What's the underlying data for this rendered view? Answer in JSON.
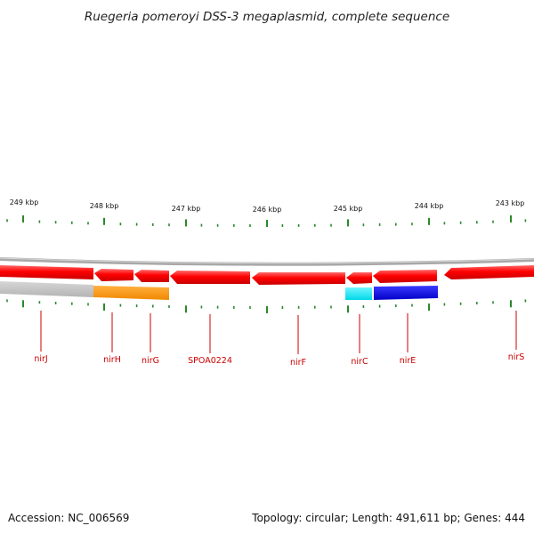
{
  "title": "Ruegeria pomeroyi DSS-3 megaplasmid, complete sequence",
  "footer": {
    "accession": "Accession: NC_006569",
    "summary": "Topology: circular; Length: 491,611 bp; Genes: 444"
  },
  "kbp_labels": [
    "249 kbp",
    "248 kbp",
    "247 kbp",
    "246 kbp",
    "245 kbp",
    "244 kbp",
    "243 kbp"
  ],
  "genes": [
    {
      "label": "nirJ"
    },
    {
      "label": "nirH"
    },
    {
      "label": "nirG"
    },
    {
      "label": "SPOA0224"
    },
    {
      "label": "nirF"
    },
    {
      "label": "nirC"
    },
    {
      "label": "nirE"
    },
    {
      "label": "nirS"
    }
  ],
  "colors": {
    "cds": "#ff0000",
    "backbone": "#909090",
    "tick": "#2a8a2a",
    "gene_label": "#cc0000",
    "feature_grey": "#c4c4c4",
    "feature_orange": "#ff9900",
    "feature_cyan": "#00e5f0",
    "feature_blue": "#1010e0"
  }
}
